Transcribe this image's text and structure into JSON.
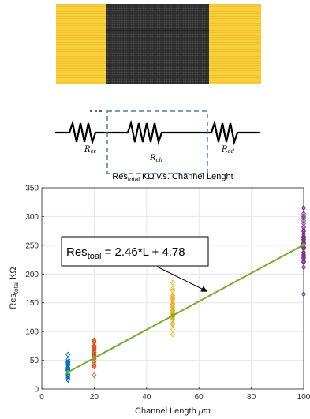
{
  "circuit": {
    "labels": [
      {
        "name": "R",
        "sub": "cs"
      },
      {
        "name": "R",
        "sub": "ch"
      },
      {
        "name": "R",
        "sub": "cd"
      }
    ]
  },
  "chart_data": {
    "type": "scatter",
    "title": {
      "main": "Res",
      "sub": "total",
      "rest": " KΩ v.s. Channel Lenght"
    },
    "xlabel": {
      "text": "Channel Length ",
      "unit": "μm"
    },
    "ylabel": {
      "main": "Res",
      "sub": "total",
      "rest": " KΩ"
    },
    "xlim": [
      0,
      100
    ],
    "ylim": [
      0,
      350
    ],
    "xticks": [
      0,
      20,
      40,
      60,
      80,
      100
    ],
    "yticks": [
      0,
      50,
      100,
      150,
      200,
      250,
      300,
      350
    ],
    "grid": true,
    "series": [
      {
        "x": 10,
        "color": "#0072BD",
        "min": 16,
        "max": 60,
        "mean": 35,
        "count": 34
      },
      {
        "x": 20,
        "color": "#D95319",
        "min": 24,
        "max": 85,
        "mean": 62,
        "count": 34
      },
      {
        "x": 50,
        "color": "#EDB120",
        "min": 95,
        "max": 185,
        "mean": 140,
        "count": 40
      },
      {
        "x": 100,
        "color": "#7E2F8E",
        "min": 165,
        "max": 315,
        "mean": 255,
        "count": 46
      }
    ],
    "fit": {
      "slope": 2.46,
      "intercept": 4.78,
      "color": "#77AC30",
      "points": [
        10,
        20,
        50,
        100
      ],
      "label": {
        "main": "Res",
        "sub": "toal",
        "rest": " = 2.46*L + 4.78"
      }
    },
    "annotation_arrow_to": {
      "x": 63,
      "y": 170
    }
  }
}
